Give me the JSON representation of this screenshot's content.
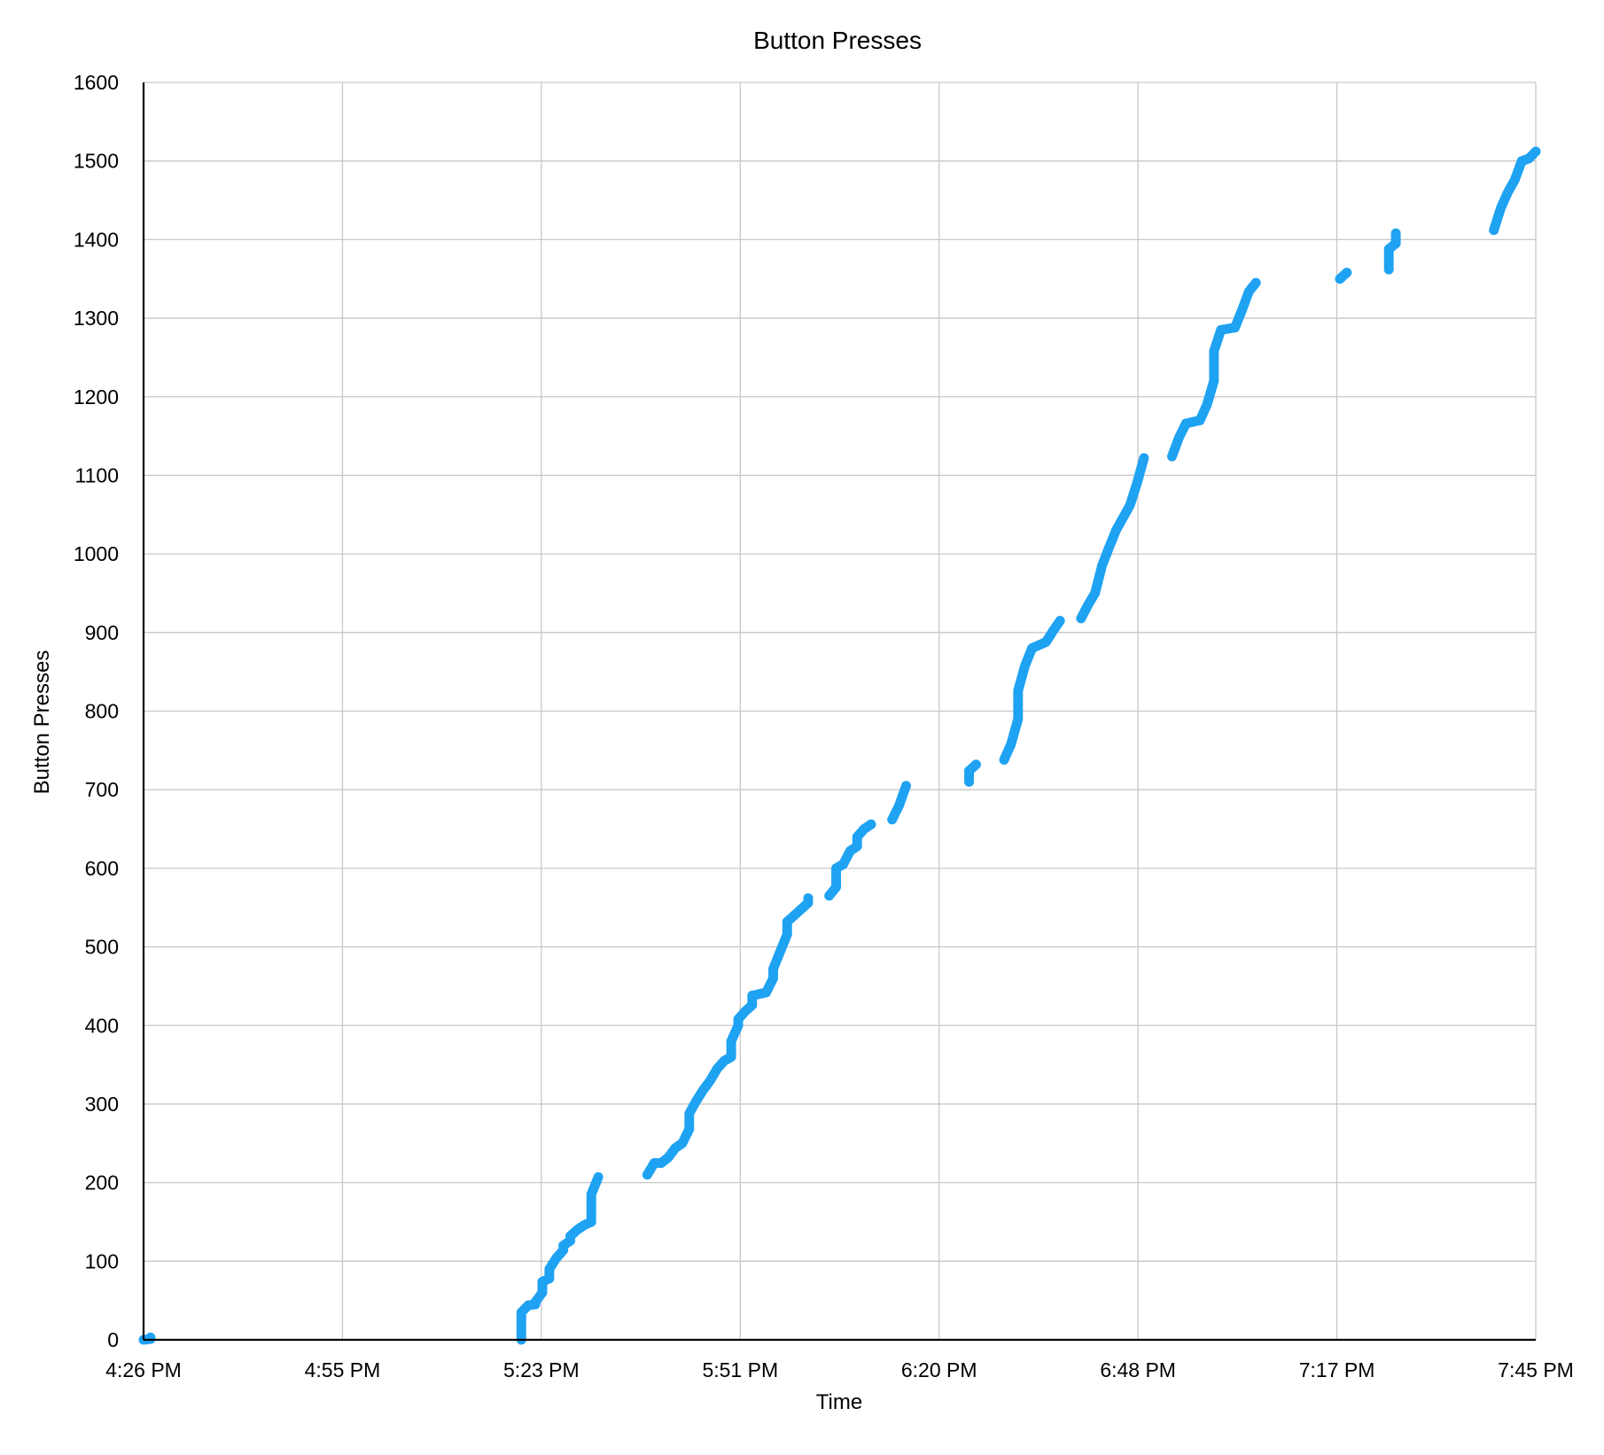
{
  "chart_data": {
    "type": "scatter",
    "title": "Button Presses",
    "xlabel": "Time",
    "ylabel": "Button Presses",
    "x_unit": "time of day",
    "xlim": [
      "4:26 PM",
      "7:45 PM"
    ],
    "ylim": [
      0,
      1600
    ],
    "y_ticks": [
      0,
      100,
      200,
      300,
      400,
      500,
      600,
      700,
      800,
      900,
      1000,
      1100,
      1200,
      1300,
      1400,
      1500,
      1600
    ],
    "x_ticks": [
      "4:26 PM",
      "4:55 PM",
      "5:23 PM",
      "5:51 PM",
      "6:20 PM",
      "6:48 PM",
      "7:17 PM",
      "7:45 PM"
    ],
    "grid": true,
    "legend": "none",
    "color": "#1fa2f2",
    "series": [
      {
        "points": [
          [
            "4:26 PM",
            0
          ],
          [
            "4:27 PM",
            1
          ],
          [
            "4:27 PM",
            3
          ],
          [
            "5:20 PM",
            0
          ],
          [
            "5:20 PM",
            15
          ],
          [
            "5:20 PM",
            35
          ],
          [
            "5:21 PM",
            44
          ],
          [
            "5:22 PM",
            45
          ],
          [
            "5:22 PM",
            48
          ],
          [
            "5:23 PM",
            60
          ],
          [
            "5:23 PM",
            74
          ],
          [
            "5:24 PM",
            78
          ],
          [
            "5:24 PM",
            90
          ],
          [
            "5:25 PM",
            104
          ],
          [
            "5:26 PM",
            114
          ],
          [
            "5:26 PM",
            120
          ],
          [
            "5:27 PM",
            126
          ],
          [
            "5:27 PM",
            132
          ],
          [
            "5:28 PM",
            140
          ],
          [
            "5:29 PM",
            146
          ],
          [
            "5:30 PM",
            150
          ],
          [
            "5:30 PM",
            165
          ],
          [
            "5:30 PM",
            185
          ],
          [
            "5:31 PM",
            207
          ],
          [
            "5:38 PM",
            210
          ],
          [
            "5:39 PM",
            225
          ],
          [
            "5:40 PM",
            225
          ],
          [
            "5:41 PM",
            232
          ],
          [
            "5:42 PM",
            244
          ],
          [
            "5:43 PM",
            250
          ],
          [
            "5:44 PM",
            268
          ],
          [
            "5:44 PM",
            288
          ],
          [
            "5:45 PM",
            304
          ],
          [
            "5:46 PM",
            318
          ],
          [
            "5:47 PM",
            330
          ],
          [
            "5:48 PM",
            345
          ],
          [
            "5:49 PM",
            355
          ],
          [
            "5:50 PM",
            360
          ],
          [
            "5:50 PM",
            380
          ],
          [
            "5:51 PM",
            400
          ],
          [
            "5:51 PM",
            408
          ],
          [
            "5:52 PM",
            418
          ],
          [
            "5:53 PM",
            426
          ],
          [
            "5:53 PM",
            438
          ],
          [
            "5:55 PM",
            442
          ],
          [
            "5:56 PM",
            460
          ],
          [
            "5:56 PM",
            472
          ],
          [
            "5:57 PM",
            494
          ],
          [
            "5:58 PM",
            516
          ],
          [
            "5:58 PM",
            532
          ],
          [
            "5:59 PM",
            540
          ],
          [
            "6:00 PM",
            548
          ],
          [
            "6:01 PM",
            556
          ],
          [
            "6:01 PM",
            562
          ],
          [
            "6:04 PM",
            565
          ],
          [
            "6:05 PM",
            576
          ],
          [
            "6:05 PM",
            600
          ],
          [
            "6:06 PM",
            605
          ],
          [
            "6:07 PM",
            622
          ],
          [
            "6:08 PM",
            628
          ],
          [
            "6:08 PM",
            640
          ],
          [
            "6:09 PM",
            650
          ],
          [
            "6:10 PM",
            656
          ],
          [
            "6:13 PM",
            662
          ],
          [
            "6:14 PM",
            680
          ],
          [
            "6:15 PM",
            705
          ],
          [
            "6:24 PM",
            710
          ],
          [
            "6:24 PM",
            724
          ],
          [
            "6:25 PM",
            732
          ],
          [
            "6:29 PM",
            738
          ],
          [
            "6:30 PM",
            758
          ],
          [
            "6:31 PM",
            790
          ],
          [
            "6:31 PM",
            826
          ],
          [
            "6:32 PM",
            858
          ],
          [
            "6:33 PM",
            880
          ],
          [
            "6:35 PM",
            888
          ],
          [
            "6:36 PM",
            902
          ],
          [
            "6:37 PM",
            915
          ],
          [
            "6:40 PM",
            918
          ],
          [
            "6:41 PM",
            935
          ],
          [
            "6:42 PM",
            950
          ],
          [
            "6:43 PM",
            985
          ],
          [
            "6:44 PM",
            1008
          ],
          [
            "6:45 PM",
            1030
          ],
          [
            "6:46 PM",
            1046
          ],
          [
            "6:47 PM",
            1062
          ],
          [
            "6:48 PM",
            1090
          ],
          [
            "6:49 PM",
            1122
          ],
          [
            "6:53 PM",
            1124
          ],
          [
            "6:54 PM",
            1148
          ],
          [
            "6:55 PM",
            1166
          ],
          [
            "6:57 PM",
            1170
          ],
          [
            "6:58 PM",
            1190
          ],
          [
            "6:59 PM",
            1220
          ],
          [
            "6:59 PM",
            1258
          ],
          [
            "7:00 PM",
            1285
          ],
          [
            "7:02 PM",
            1288
          ],
          [
            "7:03 PM",
            1310
          ],
          [
            "7:04 PM",
            1334
          ],
          [
            "7:05 PM",
            1345
          ],
          [
            "7:17 PM",
            1350
          ],
          [
            "7:18 PM",
            1358
          ],
          [
            "7:24 PM",
            1362
          ],
          [
            "7:24 PM",
            1388
          ],
          [
            "7:25 PM",
            1395
          ],
          [
            "7:25 PM",
            1408
          ],
          [
            "7:39 PM",
            1412
          ],
          [
            "7:40 PM",
            1440
          ],
          [
            "7:41 PM",
            1460
          ],
          [
            "7:42 PM",
            1476
          ],
          [
            "7:43 PM",
            1500
          ],
          [
            "7:44 PM",
            1503
          ],
          [
            "7:45 PM",
            1512
          ]
        ]
      }
    ]
  }
}
